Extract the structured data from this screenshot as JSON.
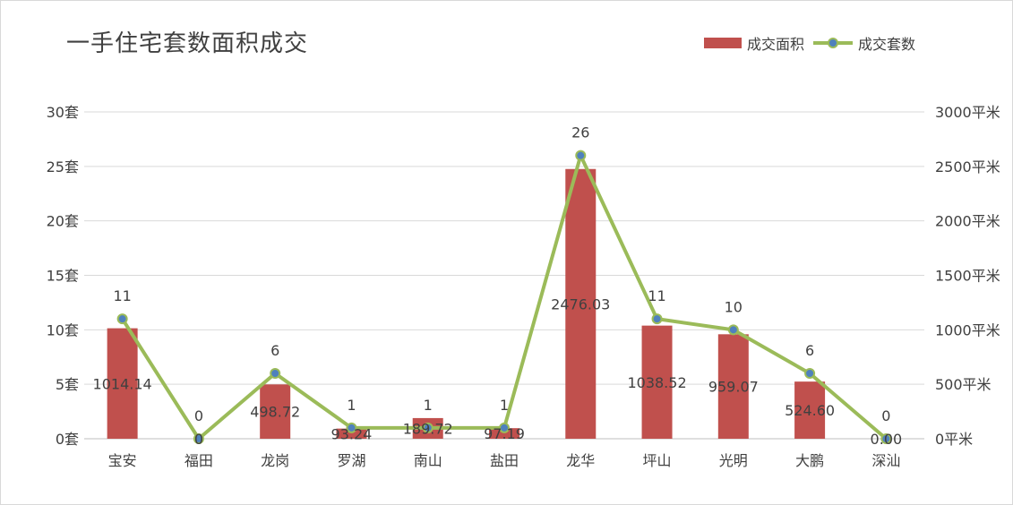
{
  "chart_data": {
    "type": "bar+line",
    "title": "一手住宅套数面积成交",
    "categories": [
      "宝安",
      "福田",
      "龙岗",
      "罗湖",
      "南山",
      "盐田",
      "龙华",
      "坪山",
      "光明",
      "大鹏",
      "深汕"
    ],
    "series": [
      {
        "name": "成交面积",
        "type": "bar",
        "axis": "right",
        "values": [
          1014.14,
          0,
          498.72,
          93.24,
          189.72,
          97.19,
          2476.03,
          1038.52,
          959.07,
          524.6,
          0.0
        ],
        "labels": [
          "1014.14",
          "0",
          "498.72",
          "93.24",
          "189.72",
          "97.19",
          "2476.03",
          "1038.52",
          "959.07",
          "524.60",
          "0.00"
        ],
        "color": "#c0504d"
      },
      {
        "name": "成交套数",
        "type": "line",
        "axis": "left",
        "values": [
          11,
          0,
          6,
          1,
          1,
          1,
          26,
          11,
          10,
          6,
          0
        ],
        "labels": [
          "11",
          "0",
          "6",
          "1",
          "1",
          "1",
          "26",
          "11",
          "10",
          "6",
          "0"
        ],
        "color": "#9bbb59",
        "marker_color": "#4f81bd"
      }
    ],
    "left_axis": {
      "range": [
        0,
        30
      ],
      "ticks": [
        "0套",
        "5套",
        "10套",
        "15套",
        "20套",
        "25套",
        "30套"
      ]
    },
    "right_axis": {
      "range": [
        0,
        3000
      ],
      "ticks": [
        "0平米",
        "500平米",
        "1000平米",
        "1500平米",
        "2000平米",
        "2500平米",
        "3000平米"
      ]
    },
    "grid": true,
    "legend": "top-right"
  }
}
